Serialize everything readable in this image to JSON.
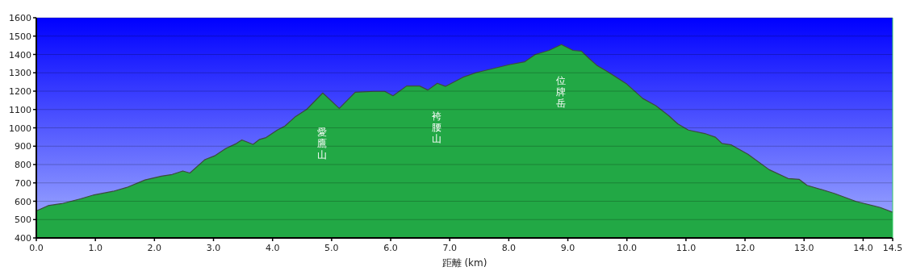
{
  "chart_data": {
    "type": "area",
    "xlabel": "距離 (km)",
    "x": [
      0,
      0.2,
      0.43,
      0.75,
      0.98,
      1.3,
      1.53,
      1.84,
      2.12,
      2.3,
      2.48,
      2.6,
      2.85,
      3.03,
      3.21,
      3.39,
      3.48,
      3.67,
      3.78,
      3.89,
      4.08,
      4.21,
      4.39,
      4.58,
      4.85,
      5.13,
      5.4,
      5.72,
      5.9,
      6.04,
      6.27,
      6.49,
      6.63,
      6.79,
      6.93,
      7.22,
      7.45,
      7.72,
      8.0,
      8.27,
      8.45,
      8.68,
      8.89,
      9.09,
      9.23,
      9.36,
      9.49,
      9.67,
      10.0,
      10.27,
      10.49,
      10.71,
      10.86,
      11.04,
      11.32,
      11.5,
      11.61,
      11.77,
      12.05,
      12.41,
      12.73,
      12.92,
      13.05,
      13.51,
      13.88,
      14.29,
      14.5
    ],
    "series": [
      {
        "color": "#22a845",
        "values": [
          547,
          576,
          587,
          613,
          635,
          654,
          675,
          716,
          737,
          746,
          765,
          754,
          826,
          849,
          888,
          915,
          934,
          910,
          937,
          947,
          988,
          1010,
          1062,
          1101,
          1190,
          1106,
          1194,
          1199,
          1199,
          1175,
          1228,
          1228,
          1206,
          1243,
          1226,
          1275,
          1301,
          1322,
          1344,
          1360,
          1400,
          1422,
          1454,
          1422,
          1418,
          1378,
          1341,
          1307,
          1238,
          1160,
          1121,
          1066,
          1022,
          988,
          969,
          949,
          915,
          907,
          856,
          772,
          724,
          719,
          687,
          643,
          599,
          566,
          540
        ]
      }
    ],
    "xlim": [
      0,
      14.5
    ],
    "ylim": [
      400,
      1600
    ],
    "xticks": [
      {
        "value": 0,
        "label": "0.0"
      },
      {
        "value": 1,
        "label": "1.0"
      },
      {
        "value": 2,
        "label": "2.0"
      },
      {
        "value": 3,
        "label": "3.0"
      },
      {
        "value": 4,
        "label": "4.0"
      },
      {
        "value": 5,
        "label": "5.0"
      },
      {
        "value": 6,
        "label": "6.0"
      },
      {
        "value": 7,
        "label": "7.0"
      },
      {
        "value": 8,
        "label": "8.0"
      },
      {
        "value": 9,
        "label": "9.0"
      },
      {
        "value": 10,
        "label": "10.0"
      },
      {
        "value": 11,
        "label": "11.0"
      },
      {
        "value": 12,
        "label": "12.0"
      },
      {
        "value": 13,
        "label": "13.0"
      },
      {
        "value": 14,
        "label": "14.0"
      },
      14.5
    ],
    "yticks": [
      400,
      500,
      600,
      700,
      800,
      900,
      1000,
      1100,
      1200,
      1300,
      1400,
      1500,
      1600
    ],
    "grid": "y",
    "annotations": [
      "愛鷹山",
      "袴腰山",
      "位牌岳"
    ]
  }
}
